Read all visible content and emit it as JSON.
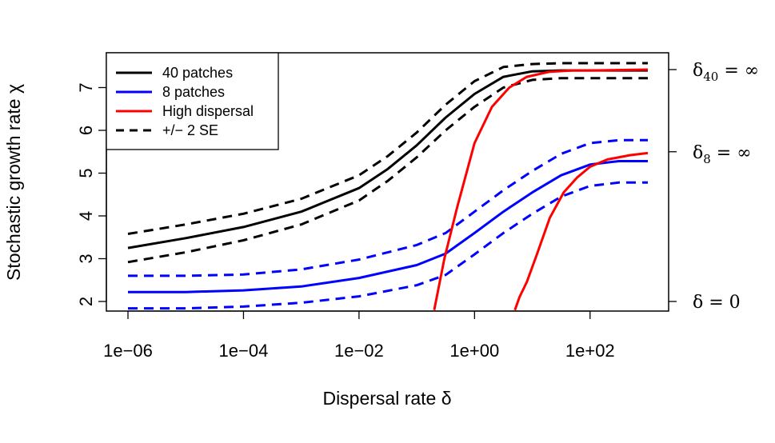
{
  "chart_data": {
    "type": "line",
    "xlabel": "Dispersal rate δ",
    "ylabel": "Stochastic growth rate χ",
    "x_scale": "log10",
    "x_ticks": [
      1e-06,
      0.0001,
      0.01,
      1,
      100
    ],
    "x_tick_labels": [
      "1e−06",
      "1e−04",
      "1e−02",
      "1e+00",
      "1e+02"
    ],
    "y_ticks": [
      2,
      3,
      4,
      5,
      6,
      7
    ],
    "y_tick_labels": [
      "2",
      "3",
      "4",
      "5",
      "6",
      "7"
    ],
    "xlim": [
      1e-06,
      1000
    ],
    "ylim": [
      1.8,
      7.8
    ],
    "grid": false,
    "legend_position": "top-left",
    "legend": [
      {
        "label": "40 patches",
        "color": "#000000",
        "dash": "solid"
      },
      {
        "label": "8 patches",
        "color": "#0000ff",
        "dash": "solid"
      },
      {
        "label": "High dispersal",
        "color": "#ff0000",
        "dash": "solid"
      },
      {
        "label": "+/− 2 SE",
        "color": "#000000",
        "dash": "dashed"
      }
    ],
    "right_axis_labels": [
      {
        "value": 7.42,
        "main": "δ",
        "sub": "40",
        "rest": " = ∞"
      },
      {
        "value": 5.5,
        "main": "δ",
        "sub": "8",
        "rest": " = ∞"
      },
      {
        "value": 2.0,
        "main": "δ",
        "sub": "",
        "rest": " = 0"
      }
    ],
    "series": [
      {
        "name": "40 patches",
        "color": "#000000",
        "dash": "solid",
        "x": [
          1e-06,
          1e-05,
          0.0001,
          0.001,
          0.01,
          0.0316,
          0.1,
          0.316,
          1,
          3.16,
          10,
          31.6,
          100,
          1000
        ],
        "y": [
          3.25,
          3.48,
          3.74,
          4.1,
          4.65,
          5.1,
          5.65,
          6.3,
          6.85,
          7.25,
          7.38,
          7.4,
          7.4,
          7.4
        ]
      },
      {
        "name": "40 patches +2 SE",
        "color": "#000000",
        "dash": "dashed",
        "x": [
          1e-06,
          1e-05,
          0.0001,
          0.001,
          0.01,
          0.0316,
          0.1,
          0.316,
          1,
          3.16,
          10,
          31.6,
          100,
          1000
        ],
        "y": [
          3.58,
          3.8,
          4.05,
          4.4,
          4.95,
          5.4,
          5.95,
          6.6,
          7.15,
          7.48,
          7.55,
          7.57,
          7.57,
          7.57
        ]
      },
      {
        "name": "40 patches −2 SE",
        "color": "#000000",
        "dash": "dashed",
        "x": [
          1e-06,
          1e-05,
          0.0001,
          0.001,
          0.01,
          0.0316,
          0.1,
          0.316,
          1,
          3.16,
          10,
          31.6,
          100,
          1000
        ],
        "y": [
          2.92,
          3.15,
          3.43,
          3.8,
          4.36,
          4.82,
          5.37,
          6.0,
          6.55,
          7.0,
          7.18,
          7.22,
          7.22,
          7.22
        ]
      },
      {
        "name": "8 patches",
        "color": "#0000ff",
        "dash": "solid",
        "x": [
          1e-06,
          1e-05,
          0.0001,
          0.001,
          0.01,
          0.1,
          0.316,
          1,
          3.16,
          10,
          31.6,
          100,
          316,
          1000
        ],
        "y": [
          2.22,
          2.22,
          2.26,
          2.35,
          2.55,
          2.85,
          3.12,
          3.6,
          4.1,
          4.55,
          4.95,
          5.2,
          5.28,
          5.28
        ]
      },
      {
        "name": "8 patches +2 SE",
        "color": "#0000ff",
        "dash": "dashed",
        "x": [
          1e-06,
          1e-05,
          0.0001,
          0.001,
          0.01,
          0.1,
          0.316,
          1,
          3.16,
          10,
          31.6,
          100,
          316,
          1000
        ],
        "y": [
          2.6,
          2.6,
          2.63,
          2.75,
          2.98,
          3.32,
          3.6,
          4.1,
          4.6,
          5.05,
          5.45,
          5.7,
          5.77,
          5.77
        ]
      },
      {
        "name": "8 patches −2 SE",
        "color": "#0000ff",
        "dash": "dashed",
        "x": [
          1e-06,
          1e-05,
          0.0001,
          0.001,
          0.01,
          0.1,
          0.316,
          1,
          3.16,
          10,
          31.6,
          100,
          316,
          1000
        ],
        "y": [
          1.84,
          1.84,
          1.88,
          1.97,
          2.12,
          2.38,
          2.62,
          3.1,
          3.6,
          4.05,
          4.45,
          4.7,
          4.78,
          4.78
        ]
      },
      {
        "name": "High dispersal (40 patches)",
        "color": "#ff0000",
        "dash": "solid",
        "x": [
          0.2,
          0.3,
          0.5,
          1,
          2,
          4,
          8,
          20,
          50,
          100,
          1000
        ],
        "y": [
          1.8,
          3.0,
          4.2,
          5.7,
          6.55,
          7.0,
          7.25,
          7.37,
          7.4,
          7.4,
          7.42
        ]
      },
      {
        "name": "High dispersal (8 patches)",
        "color": "#ff0000",
        "dash": "solid",
        "x": [
          5,
          6,
          8,
          12,
          20,
          35,
          60,
          100,
          200,
          500,
          1000
        ],
        "y": [
          1.8,
          2.1,
          2.45,
          3.1,
          3.95,
          4.55,
          4.9,
          5.15,
          5.32,
          5.42,
          5.47
        ]
      }
    ]
  }
}
